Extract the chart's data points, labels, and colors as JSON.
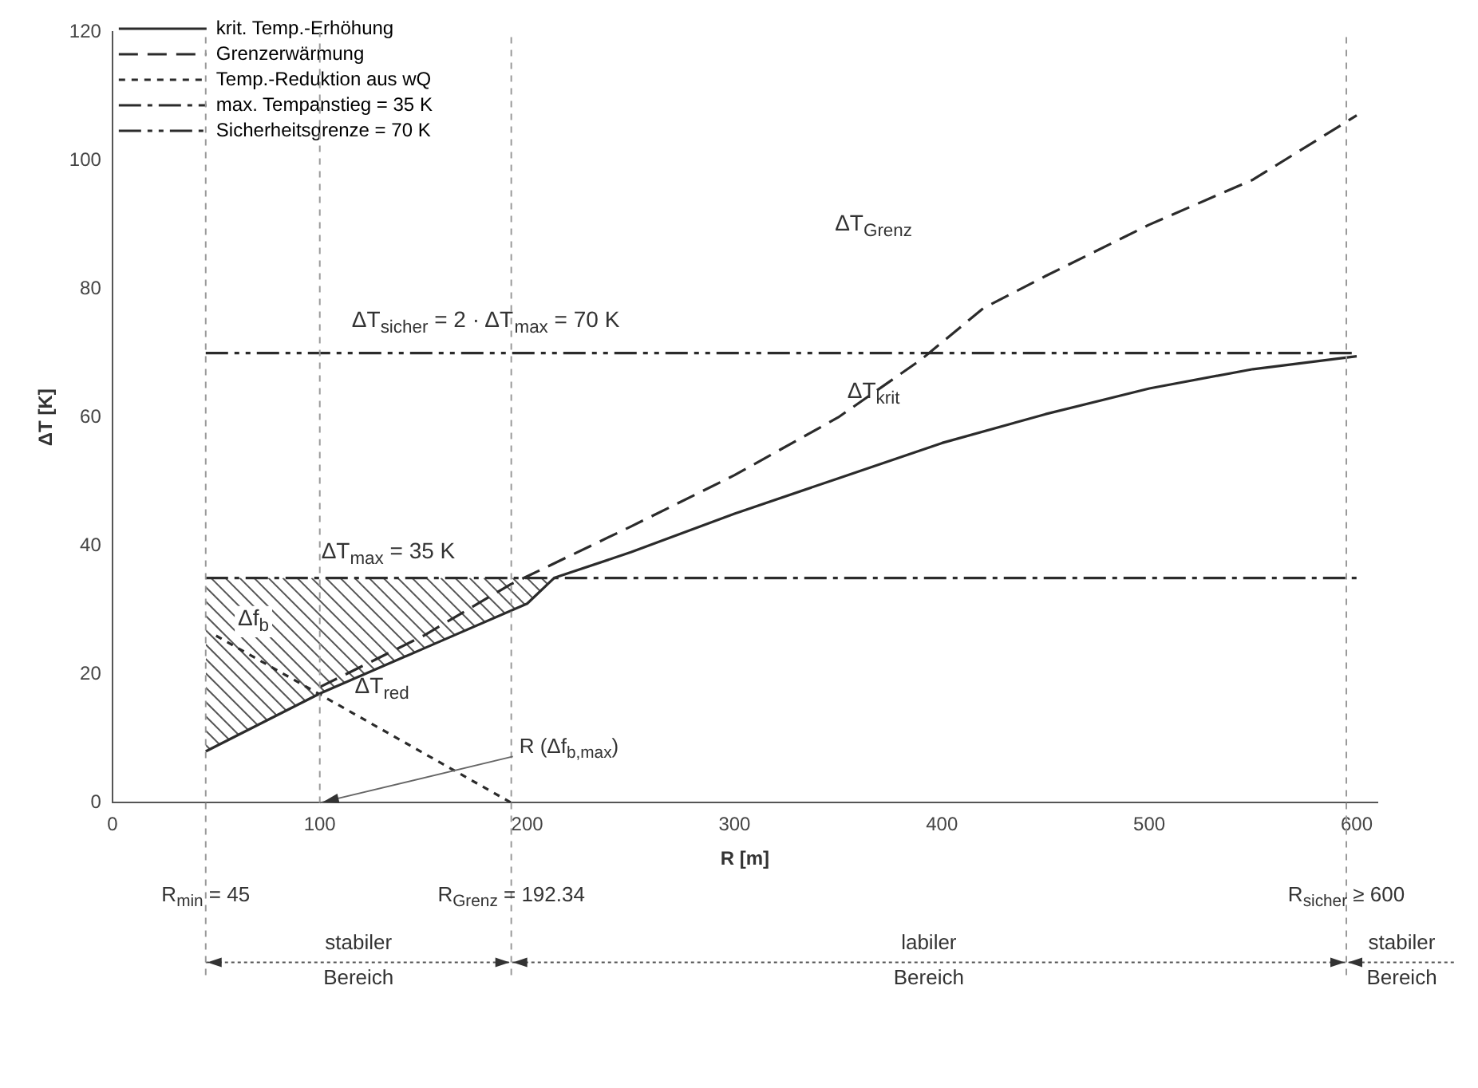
{
  "chart_data": {
    "type": "line",
    "xlabel": "R [m]",
    "ylabel": "ΔT [K]",
    "xlim": [
      0,
      610
    ],
    "xticks": [
      0,
      100,
      200,
      300,
      400,
      500,
      600
    ],
    "ylim": [
      0,
      120
    ],
    "yticks": [
      0,
      20,
      40,
      60,
      80,
      100,
      120
    ],
    "grid": false,
    "legend": "top left",
    "series": [
      {
        "name": "krit. Temp.-Erhöhung",
        "color": "#2b2b2b",
        "line_style": "solid",
        "x": [
          45,
          100,
          150,
          200,
          213,
          250,
          300,
          350,
          400,
          450,
          500,
          550,
          600
        ],
        "values": [
          8,
          17,
          24,
          31,
          35,
          39,
          45,
          50.5,
          56,
          60.5,
          64.5,
          67.5,
          69.5
        ]
      },
      {
        "name": "Grenzerwärmung",
        "color": "#2b2b2b",
        "line_style": "dashed",
        "x": [
          100,
          150,
          192,
          250,
          300,
          350,
          390,
          420,
          450,
          500,
          550,
          600
        ],
        "values": [
          18,
          26,
          34,
          43,
          51,
          60,
          69,
          77,
          82,
          90,
          97,
          107
        ]
      },
      {
        "name": "Temp.-Reduktion aus wQ",
        "color": "#2b2b2b",
        "line_style": "dotted",
        "x": [
          50,
          192.34
        ],
        "values": [
          26,
          0
        ]
      },
      {
        "name": "max. Tempanstieg = 35 K",
        "color": "#2b2b2b",
        "line_style": "dashdot",
        "x": [
          45,
          600
        ],
        "values": [
          35,
          35
        ]
      },
      {
        "name": "Sicherheitsgrenze = 70 K",
        "color": "#2b2b2b",
        "line_style": "dashdotdot",
        "x": [
          45,
          600
        ],
        "values": [
          70,
          70
        ]
      }
    ],
    "ref_lines": [
      {
        "axis": "x",
        "value": 45,
        "label": "R$_{min}$ = 45",
        "color": "#9a9a9a"
      },
      {
        "axis": "x",
        "value": 100,
        "color": "#9a9a9a"
      },
      {
        "axis": "x",
        "value": 192.34,
        "label": "R$_{Grenz}$ = 192.34",
        "color": "#9a9a9a"
      },
      {
        "axis": "x",
        "value": 595,
        "label": "R$_{sicher}$ ≥ 600",
        "color": "#9a9a9a"
      }
    ],
    "annotations": [
      "ΔT$_{Grenz}$",
      "ΔT$_{krit}$",
      "ΔT$_{sicher}$ = 2 · ΔT$_{max}$ = 70 K",
      {
        "text": "ΔT$_{max}$ = 35 K",
        "x": 133,
        "y": 35
      },
      {
        "text": "Δf$_{b}$",
        "x": 68,
        "y": 35
      },
      "ΔT$_{red}$",
      {
        "text": "R (Δf$_{b,max}$)",
        "x": 100,
        "y": 0
      },
      "stabiler Bereich",
      "labiler Bereich",
      "stabiler Bereich"
    ]
  }
}
